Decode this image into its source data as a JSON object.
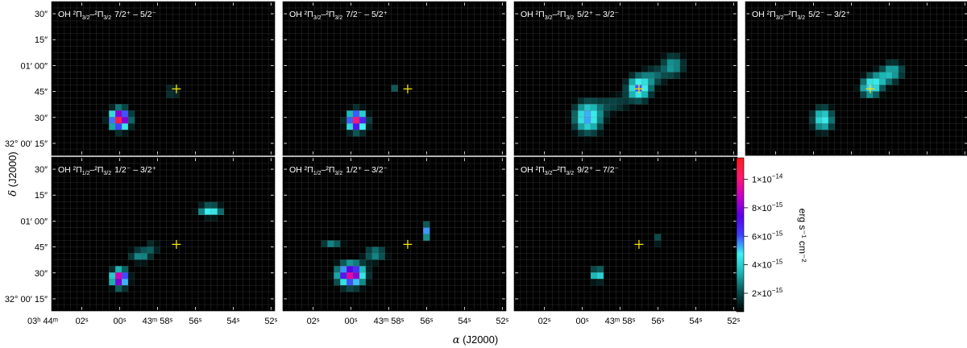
{
  "colorbar": {
    "label": "erg s⁻¹ cm⁻²",
    "ticks": [
      {
        "value": 2e-15,
        "mant": "2×10",
        "exp": "−15"
      },
      {
        "value": 4e-15,
        "mant": "4×10",
        "exp": "−15"
      },
      {
        "value": 6e-15,
        "mant": "6×10",
        "exp": "−15"
      },
      {
        "value": 8e-15,
        "mant": "8×10",
        "exp": "−15"
      },
      {
        "value": 1e-14,
        "mant": "1×10",
        "exp": "−14"
      }
    ],
    "vmin": 7e-16,
    "vmax": 1.15e-14,
    "colors": [
      "#000000",
      "#0a4d4d",
      "#19b4b4",
      "#3ff2f2",
      "#3f3fff",
      "#5a00e6",
      "#c800c8",
      "#ff1a6e",
      "#ff1a1a"
    ]
  },
  "axes": {
    "xlabel_sym": "α",
    "xlabel_rest": " (J2000)",
    "ylabel_sym": "δ",
    "ylabel_rest": " (J2000)",
    "yticks": [
      {
        "dec_arcsec": 30,
        "label": "30″"
      },
      {
        "dec_arcsec": 15,
        "label": "15″"
      },
      {
        "dec_arcsec": 0,
        "label": "01′ 00″"
      },
      {
        "dec_arcsec": -15,
        "label": "45″"
      },
      {
        "dec_arcsec": -30,
        "label": "30″"
      },
      {
        "dec_arcsec": -45,
        "label": "32° 00′ 15″"
      }
    ],
    "xticks": [
      {
        "ra_sec": 62,
        "label": "02ˢ"
      },
      {
        "ra_sec": 60,
        "label": "00ˢ"
      },
      {
        "ra_sec": 58,
        "label": "43ᵐ 58ˢ"
      },
      {
        "ra_sec": 56,
        "label": "56ˢ"
      },
      {
        "ra_sec": 54,
        "label": "54ˢ"
      },
      {
        "ra_sec": 52,
        "label": "52ˢ"
      }
    ],
    "ra_prefix": "03ʰ 44ᵐ",
    "ra_range": [
      63.6,
      51.8
    ],
    "dec_range": [
      37,
      -52
    ]
  },
  "marker": {
    "ra_sec": 57.0,
    "dec_arcsec": -13.5
  },
  "chart_data": {
    "type": "heatmap",
    "units": "erg s⁻¹ cm⁻²",
    "panels": [
      {
        "id": "p1",
        "title": {
          "base": "OH ²Π",
          "a": "3/2",
          "mid": "–²Π",
          "b": "3/2",
          "trans": "7/2⁺ – 5/2⁻"
        },
        "blobs": [
          {
            "ra_sec": 60.0,
            "dec_arcsec": -31,
            "peak": 1.1e-14,
            "sigma_ra": 0.35,
            "sigma_dec": 4.0
          },
          {
            "ra_sec": 57.2,
            "dec_arcsec": -15,
            "peak": 7e-15,
            "sigma_ra": 0.12,
            "sigma_dec": 1.6
          }
        ]
      },
      {
        "id": "p2",
        "title": {
          "base": "OH ²Π",
          "a": "3/2",
          "mid": "–²Π",
          "b": "3/2",
          "trans": "7/2⁻ – 5/2⁺"
        },
        "blobs": [
          {
            "ra_sec": 59.7,
            "dec_arcsec": -32,
            "peak": 1e-14,
            "sigma_ra": 0.35,
            "sigma_dec": 4.0
          },
          {
            "ra_sec": 57.7,
            "dec_arcsec": -13,
            "peak": 2.2e-15,
            "sigma_ra": 0.12,
            "sigma_dec": 1.5
          }
        ]
      },
      {
        "id": "p3",
        "title": {
          "base": "OH ²Π",
          "a": "3/2",
          "mid": "–²Π",
          "b": "3/2",
          "trans": "5/2⁺ – 3/2⁻"
        },
        "blobs": [
          {
            "ra_sec": 59.7,
            "dec_arcsec": -30,
            "peak": 5.5e-15,
            "sigma_ra": 0.55,
            "sigma_dec": 6.5
          },
          {
            "ra_sec": 57.0,
            "dec_arcsec": -13,
            "peak": 5.8e-15,
            "sigma_ra": 0.45,
            "sigma_dec": 5.0
          },
          {
            "ra_sec": 55.2,
            "dec_arcsec": 0,
            "peak": 3.2e-15,
            "sigma_ra": 0.45,
            "sigma_dec": 5.0
          },
          {
            "ra_sec": 58.3,
            "dec_arcsec": -22,
            "peak": 1.9e-15,
            "sigma_ra": 0.6,
            "sigma_dec": 4.0
          },
          {
            "ra_sec": 56.2,
            "dec_arcsec": -6,
            "peak": 2.1e-15,
            "sigma_ra": 0.45,
            "sigma_dec": 4.0
          }
        ]
      },
      {
        "id": "p4",
        "title": {
          "base": "OH ²Π",
          "a": "3/2",
          "mid": "–²Π",
          "b": "3/2",
          "trans": "5/2⁻ – 3/2⁺"
        },
        "blobs": [
          {
            "ra_sec": 59.5,
            "dec_arcsec": -31,
            "peak": 4.8e-15,
            "sigma_ra": 0.4,
            "sigma_dec": 5.0
          },
          {
            "ra_sec": 57.0,
            "dec_arcsec": -13,
            "peak": 4.5e-15,
            "sigma_ra": 0.4,
            "sigma_dec": 4.0
          },
          {
            "ra_sec": 55.8,
            "dec_arcsec": -3,
            "peak": 3.2e-15,
            "sigma_ra": 0.45,
            "sigma_dec": 4.0
          },
          {
            "ra_sec": 56.5,
            "dec_arcsec": -8,
            "peak": 2.6e-15,
            "sigma_ra": 0.5,
            "sigma_dec": 3.5
          }
        ]
      },
      {
        "id": "p5",
        "title": {
          "base": "OH ²Π",
          "a": "1/2",
          "mid": "–²Π",
          "b": "3/2",
          "trans": "1/2⁻ – 3/2⁺"
        },
        "blobs": [
          {
            "ra_sec": 60.0,
            "dec_arcsec": -33,
            "peak": 1e-14,
            "sigma_ra": 0.3,
            "sigma_dec": 3.5
          },
          {
            "ra_sec": 55.2,
            "dec_arcsec": 6,
            "peak": 5e-15,
            "sigma_ra": 0.45,
            "sigma_dec": 2.5
          },
          {
            "ra_sec": 58.9,
            "dec_arcsec": -20,
            "peak": 3e-15,
            "sigma_ra": 0.45,
            "sigma_dec": 3.0
          },
          {
            "ra_sec": 58.3,
            "dec_arcsec": -15,
            "peak": 2.2e-15,
            "sigma_ra": 0.3,
            "sigma_dec": 2.0
          }
        ]
      },
      {
        "id": "p6",
        "title": {
          "base": "OH ²Π",
          "a": "1/2",
          "mid": "–²Π",
          "b": "3/2",
          "trans": "1/2⁺ – 3/2⁻"
        },
        "blobs": [
          {
            "ra_sec": 60.0,
            "dec_arcsec": -31,
            "peak": 9.5e-15,
            "sigma_ra": 0.5,
            "sigma_dec": 4.5
          },
          {
            "ra_sec": 58.7,
            "dec_arcsec": -19,
            "peak": 3e-15,
            "sigma_ra": 0.45,
            "sigma_dec": 3.5
          },
          {
            "ra_sec": 56.0,
            "dec_arcsec": -6,
            "peak": 5.5e-15,
            "sigma_ra": 0.15,
            "sigma_dec": 3.0
          },
          {
            "ra_sec": 61.0,
            "dec_arcsec": -13,
            "peak": 2.8e-15,
            "sigma_ra": 0.4,
            "sigma_dec": 1.6
          }
        ]
      },
      {
        "id": "p7",
        "title": {
          "base": "OH ²Π",
          "a": "3/2",
          "mid": "–²Π",
          "b": "3/2",
          "trans": "9/2⁺ – 7/2⁻"
        },
        "blobs": [
          {
            "ra_sec": 59.2,
            "dec_arcsec": -31,
            "peak": 5.5e-15,
            "sigma_ra": 0.2,
            "sigma_dec": 2.8
          },
          {
            "ra_sec": 56.1,
            "dec_arcsec": -11,
            "peak": 6e-15,
            "sigma_ra": 0.15,
            "sigma_dec": 1.2
          }
        ]
      }
    ]
  }
}
